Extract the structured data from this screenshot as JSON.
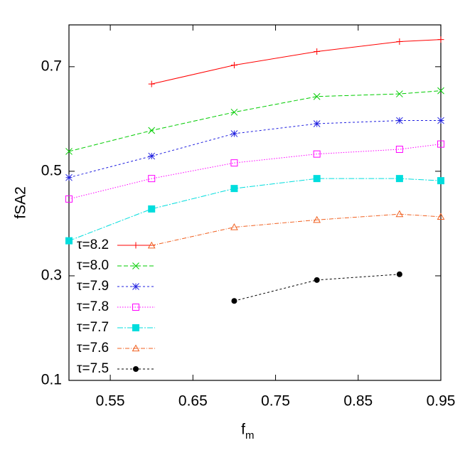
{
  "chart_data": {
    "type": "line",
    "x_label": "f",
    "x_label_sub": "m",
    "y_label": "fSA2",
    "x": [
      0.5,
      0.6,
      0.7,
      0.8,
      0.9,
      0.95
    ],
    "xlim": [
      0.5,
      0.95
    ],
    "xticks": [
      0.55,
      0.65,
      0.75,
      0.85,
      0.95
    ],
    "ylim": [
      0.1,
      0.78
    ],
    "yticks": [
      0.1,
      0.3,
      0.5,
      0.7
    ],
    "legend": "lower left",
    "series": [
      {
        "name": "τ=8.2",
        "color": "#ff0000",
        "marker": "plus",
        "values": [
          null,
          0.667,
          0.703,
          0.729,
          0.748,
          0.752
        ]
      },
      {
        "name": "τ=8.0",
        "color": "#00cc00",
        "marker": "cross",
        "values": [
          0.538,
          0.578,
          0.613,
          0.643,
          0.648,
          0.654
        ]
      },
      {
        "name": "τ=7.9",
        "color": "#2020e0",
        "marker": "star",
        "values": [
          0.488,
          0.529,
          0.572,
          0.591,
          0.597,
          0.597
        ]
      },
      {
        "name": "τ=7.8",
        "color": "#ff00ff",
        "marker": "square-open",
        "values": [
          0.447,
          0.486,
          0.516,
          0.533,
          0.542,
          0.552
        ]
      },
      {
        "name": "τ=7.7",
        "color": "#00dddd",
        "marker": "square",
        "values": [
          0.367,
          0.428,
          0.467,
          0.486,
          0.486,
          0.482
        ]
      },
      {
        "name": "τ=7.6",
        "color": "#f06020",
        "marker": "triangle-open",
        "values": [
          null,
          0.358,
          0.393,
          0.407,
          0.418,
          0.413
        ]
      },
      {
        "name": "τ=7.5",
        "color": "#000000",
        "marker": "circle",
        "values": [
          null,
          null,
          0.252,
          0.292,
          0.303,
          null
        ]
      }
    ]
  }
}
